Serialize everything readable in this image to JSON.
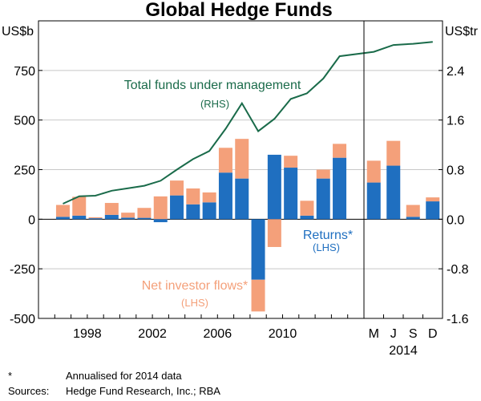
{
  "chart_data": {
    "type": "bar",
    "title": "Global Hedge Funds",
    "left_axis": {
      "unit": "US$b",
      "ticks": [
        750,
        500,
        250,
        0,
        -250,
        -500
      ],
      "tick_labels": [
        "750",
        "500",
        "250",
        "0",
        "-250",
        "-500"
      ],
      "range": [
        -500,
        1000
      ]
    },
    "right_axis": {
      "unit": "US$tr",
      "ticks": [
        2.4,
        1.6,
        0.8,
        0.0,
        -0.8,
        -1.6
      ],
      "tick_labels": [
        "2.4",
        "1.6",
        "0.8",
        "0.0",
        "-0.8",
        "-1.6"
      ],
      "range": [
        -1.6,
        3.2
      ]
    },
    "x_tick_labels_annual": [
      "1998",
      "2002",
      "2006",
      "2010"
    ],
    "x_tick_labels_2014": [
      "M",
      "J",
      "S",
      "D"
    ],
    "x_year_2014_label": "2014",
    "grid": true,
    "periods": [
      "1996",
      "1997",
      "1998",
      "1999",
      "2000",
      "2001",
      "2002",
      "2003",
      "2004",
      "2005",
      "2006",
      "2007",
      "2008",
      "2009",
      "2010",
      "2011",
      "2012",
      "2013",
      "Mar 2014",
      "Jun 2014",
      "Sep 2014",
      "Dec 2014"
    ],
    "series": [
      {
        "name": "Returns*",
        "axis": "LHS",
        "color": "#1f6fc0",
        "values": [
          12,
          18,
          5,
          22,
          8,
          7,
          -15,
          120,
          75,
          85,
          235,
          205,
          -305,
          325,
          260,
          18,
          205,
          310,
          185,
          270,
          12,
          90
        ]
      },
      {
        "name": "Net investor flows*",
        "axis": "LHS",
        "color": "#f4a07a",
        "values": [
          60,
          95,
          5,
          60,
          25,
          50,
          115,
          75,
          80,
          50,
          125,
          200,
          -160,
          -140,
          60,
          75,
          45,
          70,
          110,
          125,
          60,
          20
        ]
      },
      {
        "name": "Total funds under management",
        "axis": "RHS",
        "color": "#1a6b4a",
        "values": [
          0.25,
          0.37,
          0.38,
          0.46,
          0.5,
          0.54,
          0.62,
          0.8,
          0.97,
          1.1,
          1.46,
          1.87,
          1.42,
          1.62,
          1.94,
          2.03,
          2.27,
          2.63,
          2.7,
          2.81,
          2.83,
          2.86
        ]
      }
    ],
    "annotations": {
      "tfm": "Total funds under management",
      "tfm_sub": "(RHS)",
      "returns": "Returns*",
      "returns_sub": "(LHS)",
      "flows": "Net investor flows*",
      "flows_sub": "(LHS)"
    }
  },
  "footnotes": {
    "asterisk": "*",
    "asterisk_text": "Annualised for 2014 data",
    "sources_label": "Sources:",
    "sources_text": "Hedge Fund Research, Inc.; RBA"
  },
  "colors": {
    "returns": "#1f6fc0",
    "flows": "#f4a07a",
    "tfm": "#1a6b4a",
    "grid": "#c8c8c8"
  }
}
